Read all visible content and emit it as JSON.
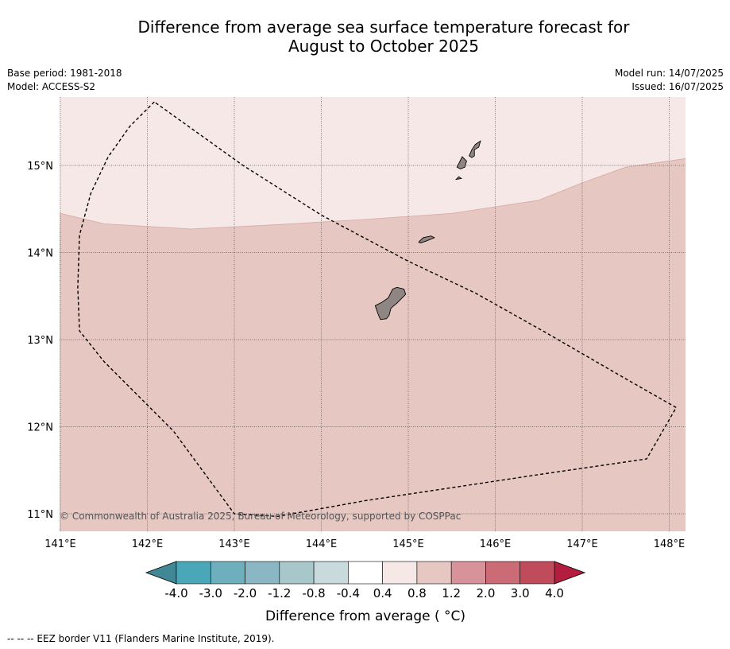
{
  "header": {
    "title_line1": "Difference from average sea surface temperature forecast for",
    "title_line2": "August to October 2025",
    "base_period": "Base period: 1981-2018",
    "model": "Model: ACCESS-S2",
    "model_run": "Model run: 14/07/2025",
    "issued": "Issued: 16/07/2025"
  },
  "copyright": "© Commonwealth of Australia 2025, Bureau of Meteorology, supported by COSPPac",
  "footnote": "--  --  -- EEZ border V11 (Flanders Marine Institute, 2019).",
  "chart_data": {
    "type": "heatmap",
    "x_tick_labels": [
      "141°E",
      "142°E",
      "143°E",
      "144°E",
      "145°E",
      "146°E",
      "147°E",
      "148°E"
    ],
    "y_tick_labels": [
      "11°N",
      "12°N",
      "13°N",
      "14°N",
      "15°N"
    ],
    "xlim": [
      141,
      148.2
    ],
    "ylim": [
      10.8,
      15.8
    ],
    "grid": true,
    "regions": [
      {
        "range": "0.4 to 0.8",
        "color": "#f5e8e6",
        "area": "north"
      },
      {
        "range": "0.8 to 1.2",
        "color": "#e7c7c1",
        "area": "south"
      }
    ],
    "boundary_0_8": [
      [
        141.0,
        14.45
      ],
      [
        141.5,
        14.33
      ],
      [
        142.5,
        14.27
      ],
      [
        143.5,
        14.32
      ],
      [
        144.5,
        14.38
      ],
      [
        145.5,
        14.45
      ],
      [
        146.5,
        14.6
      ],
      [
        147.0,
        14.8
      ],
      [
        147.5,
        14.98
      ],
      [
        148.2,
        15.08
      ]
    ],
    "eez_border": [
      [
        142.08,
        15.73
      ],
      [
        141.8,
        15.45
      ],
      [
        141.55,
        15.1
      ],
      [
        141.35,
        14.68
      ],
      [
        141.22,
        14.2
      ],
      [
        141.2,
        13.6
      ],
      [
        141.22,
        13.1
      ],
      [
        141.5,
        12.75
      ],
      [
        142.3,
        11.95
      ],
      [
        143.0,
        11.0
      ],
      [
        143.5,
        10.97
      ],
      [
        144.5,
        11.15
      ],
      [
        145.5,
        11.3
      ],
      [
        146.5,
        11.45
      ],
      [
        147.74,
        11.63
      ],
      [
        148.08,
        12.22
      ],
      [
        147.5,
        12.55
      ],
      [
        146.6,
        13.07
      ],
      [
        145.78,
        13.53
      ],
      [
        145.0,
        13.9
      ],
      [
        144.0,
        14.43
      ],
      [
        143.1,
        15.0
      ],
      [
        142.08,
        15.73
      ]
    ],
    "islands": [
      {
        "coords": [
          [
            144.62,
            13.39
          ],
          [
            144.7,
            13.43
          ],
          [
            144.77,
            13.48
          ],
          [
            144.82,
            13.58
          ],
          [
            144.87,
            13.6
          ],
          [
            144.95,
            13.58
          ],
          [
            144.97,
            13.52
          ],
          [
            144.87,
            13.42
          ],
          [
            144.8,
            13.36
          ],
          [
            144.78,
            13.28
          ],
          [
            144.75,
            13.24
          ],
          [
            144.68,
            13.23
          ],
          [
            144.65,
            13.3
          ],
          [
            144.62,
            13.39
          ]
        ]
      },
      {
        "coords": [
          [
            145.12,
            14.12
          ],
          [
            145.17,
            14.17
          ],
          [
            145.26,
            14.19
          ],
          [
            145.3,
            14.17
          ],
          [
            145.2,
            14.13
          ],
          [
            145.14,
            14.11
          ],
          [
            145.12,
            14.12
          ]
        ]
      },
      {
        "coords": [
          [
            145.56,
            14.98
          ],
          [
            145.59,
            15.04
          ],
          [
            145.62,
            15.1
          ],
          [
            145.67,
            15.05
          ],
          [
            145.65,
            14.98
          ],
          [
            145.6,
            14.96
          ],
          [
            145.56,
            14.98
          ]
        ]
      },
      {
        "coords": [
          [
            145.61,
            14.85
          ],
          [
            145.55,
            14.84
          ],
          [
            145.58,
            14.87
          ],
          [
            145.61,
            14.85
          ]
        ]
      },
      {
        "coords": [
          [
            145.7,
            15.11
          ],
          [
            145.73,
            15.18
          ],
          [
            145.77,
            15.24
          ],
          [
            145.83,
            15.28
          ],
          [
            145.81,
            15.21
          ],
          [
            145.76,
            15.18
          ],
          [
            145.76,
            15.11
          ],
          [
            145.73,
            15.09
          ],
          [
            145.7,
            15.11
          ]
        ]
      }
    ],
    "colorbar": {
      "label": "Difference from average ( °C)",
      "tick_labels": [
        "-4.0",
        "-3.0",
        "-2.0",
        "-1.2",
        "-0.8",
        "-0.4",
        "0.4",
        "0.8",
        "1.2",
        "2.0",
        "3.0",
        "4.0"
      ],
      "colors": [
        "#4aa7b7",
        "#6eafbd",
        "#8ab7c3",
        "#a8c7cb",
        "#c9dadd",
        "#ffffff",
        "#f5e8e6",
        "#e7c7c1",
        "#d8939a",
        "#cb6b75",
        "#c04b5a"
      ],
      "under_color": "#418896",
      "over_color": "#b31e3f"
    }
  }
}
